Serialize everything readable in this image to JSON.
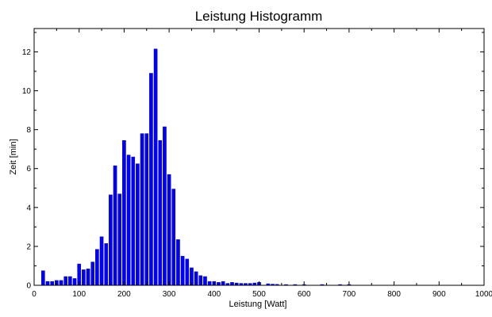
{
  "chart_data": {
    "type": "bar",
    "title": "Leistung Histogramm",
    "xlabel": "Leistung [Watt]",
    "ylabel": "Zeit [min]",
    "xlim": [
      0,
      1000
    ],
    "ylim": [
      0,
      13.2
    ],
    "xticks": [
      0,
      100,
      200,
      300,
      400,
      500,
      600,
      700,
      800,
      900,
      1000
    ],
    "yticks": [
      0,
      2,
      4,
      6,
      8,
      10,
      12
    ],
    "grid": false,
    "bar_color": "#0000ff",
    "bar_edge_color": "#000080",
    "series": [
      {
        "x": [
          20,
          30,
          40,
          50,
          60,
          70,
          80,
          90,
          100,
          110,
          120,
          130,
          140,
          150,
          160,
          170,
          180,
          190,
          200,
          210,
          220,
          230,
          240,
          250,
          260,
          270,
          280,
          290,
          300,
          310,
          320,
          330,
          340,
          350,
          360,
          370,
          380,
          390,
          400,
          410,
          420,
          430,
          440,
          450,
          460,
          470,
          480,
          490,
          500,
          520,
          530,
          540,
          560,
          580,
          600,
          640,
          680,
          700
        ],
        "values": [
          0.75,
          0.2,
          0.2,
          0.25,
          0.25,
          0.45,
          0.45,
          0.35,
          1.1,
          0.8,
          0.85,
          1.2,
          1.85,
          2.5,
          2.15,
          4.65,
          6.15,
          4.7,
          7.45,
          6.7,
          6.6,
          6.25,
          7.8,
          7.8,
          10.9,
          12.15,
          7.45,
          8.15,
          5.7,
          4.95,
          2.35,
          1.5,
          1.35,
          0.9,
          0.7,
          0.5,
          0.45,
          0.2,
          0.2,
          0.15,
          0.2,
          0.1,
          0.15,
          0.12,
          0.1,
          0.1,
          0.1,
          0.12,
          0.15,
          0.08,
          0.06,
          0.05,
          0.04,
          0.03,
          0.04,
          0.03,
          0.03,
          0.03
        ]
      }
    ]
  }
}
